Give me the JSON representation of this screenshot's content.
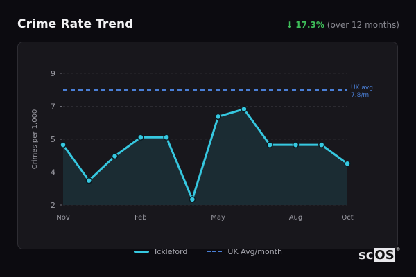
{
  "header": {
    "title": "Crime Rate Trend",
    "trend_arrow": "↓",
    "trend_pct": "17.3%",
    "trend_note": "(over 12 months)"
  },
  "colors": {
    "line": "#36c8e0",
    "area": "#1b2d35",
    "uk_avg": "#4a7fd6",
    "trend_down": "#3fbf5a"
  },
  "chart_data": {
    "type": "line",
    "title": "Crime Rate Trend",
    "xlabel": "",
    "ylabel": "Crimes per 1,000",
    "ylim": [
      2,
      9
    ],
    "y_ticks": [
      "9",
      "7",
      "5",
      "4",
      "2"
    ],
    "x": [
      "Nov",
      "Dec",
      "Jan",
      "Feb",
      "Mar",
      "Apr",
      "May",
      "Jun",
      "Jul",
      "Aug",
      "Sep",
      "Oct"
    ],
    "x_tick_labels": [
      "Nov",
      "Feb",
      "May",
      "Aug",
      "Oct"
    ],
    "series": [
      {
        "name": "Ickleford",
        "values": [
          5.2,
          3.3,
          4.6,
          5.6,
          5.6,
          2.3,
          6.7,
          7.1,
          5.2,
          5.2,
          5.2,
          4.2
        ]
      },
      {
        "name": "UK Avg/month",
        "values": [
          7.8,
          7.8,
          7.8,
          7.8,
          7.8,
          7.8,
          7.8,
          7.8,
          7.8,
          7.8,
          7.8,
          7.8
        ],
        "style": "dashed"
      }
    ],
    "annotations": [
      {
        "text": "UK avg",
        "subtext": "7.8/m"
      }
    ],
    "grid": true,
    "legend_position": "bottom"
  },
  "legend": {
    "items": [
      {
        "label": "Ickleford"
      },
      {
        "label": "UK Avg/month"
      }
    ]
  },
  "logo": {
    "prefix": "sc",
    "boxed": "OS",
    "mark": "®"
  }
}
